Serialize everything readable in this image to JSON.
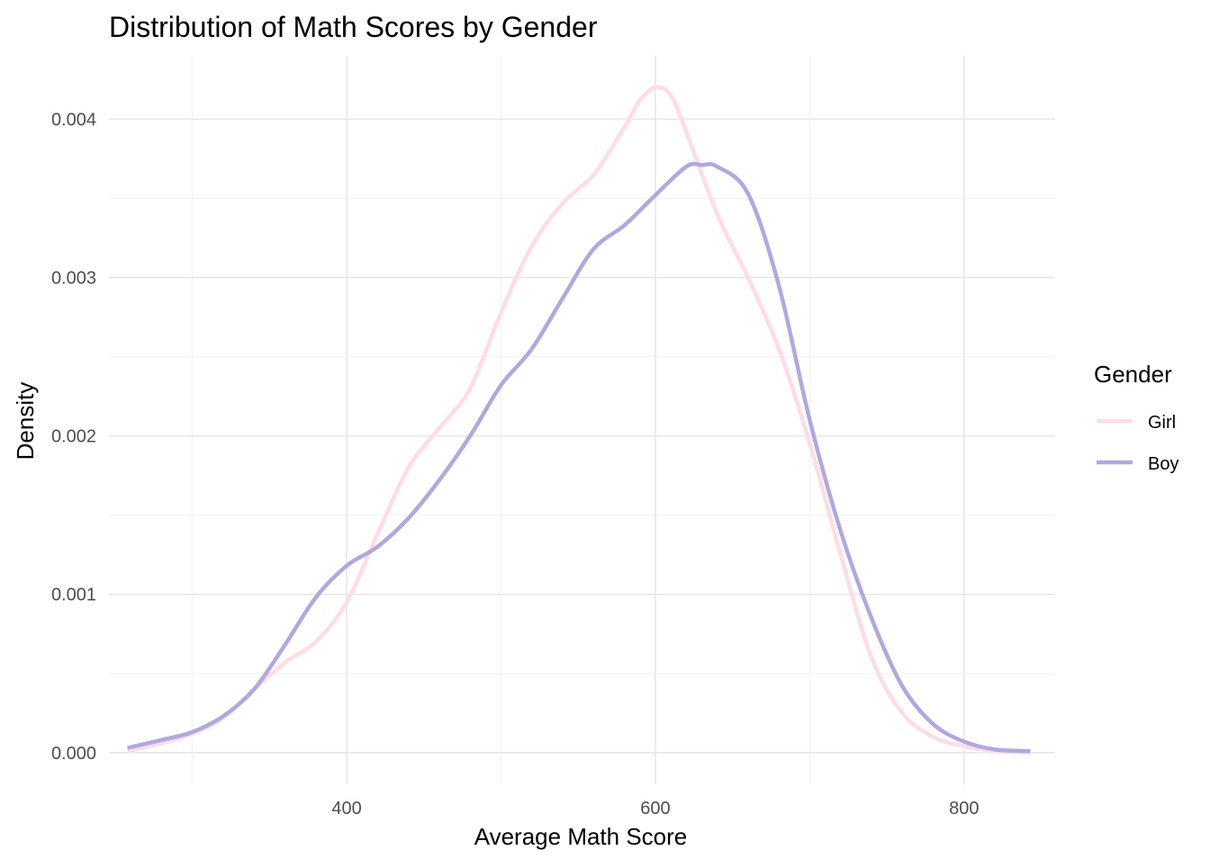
{
  "chart_data": {
    "type": "line",
    "title": "Distribution of Math Scores by Gender",
    "xlabel": "Average Math Score",
    "ylabel": "Density",
    "xlim": [
      246,
      859
    ],
    "ylim": [
      -0.0002,
      0.0044
    ],
    "x_ticks": [
      400,
      600,
      800
    ],
    "y_ticks": [
      0.0,
      0.001,
      0.002,
      0.003,
      0.004
    ],
    "x_tick_labels": [
      "400",
      "600",
      "800"
    ],
    "y_tick_labels": [
      "0.000",
      "0.001",
      "0.002",
      "0.003",
      "0.004"
    ],
    "grid": true,
    "legend": {
      "title": "Gender",
      "position": "right",
      "entries": [
        "Girl",
        "Boy"
      ]
    },
    "series": [
      {
        "name": "Girl",
        "color": "#ffdce6",
        "x": [
          258,
          280,
          300,
          320,
          340,
          360,
          380,
          400,
          420,
          440,
          460,
          480,
          500,
          520,
          540,
          560,
          580,
          590,
          600,
          610,
          620,
          640,
          660,
          680,
          700,
          720,
          740,
          760,
          780,
          800,
          820,
          843
        ],
        "y": [
          1e-05,
          6e-05,
          0.00012,
          0.00022,
          0.0004,
          0.00057,
          0.0007,
          0.00095,
          0.00138,
          0.0018,
          0.00205,
          0.0023,
          0.00278,
          0.0032,
          0.00347,
          0.00365,
          0.00395,
          0.00412,
          0.0042,
          0.00415,
          0.00392,
          0.0034,
          0.003,
          0.00255,
          0.00195,
          0.00125,
          0.0006,
          0.00025,
          0.0001,
          4e-05,
          1e-05,
          0.0
        ]
      },
      {
        "name": "Boy",
        "color": "#b0a8e0",
        "x": [
          258,
          280,
          300,
          320,
          340,
          360,
          380,
          400,
          420,
          440,
          460,
          480,
          500,
          520,
          540,
          560,
          580,
          600,
          620,
          630,
          640,
          660,
          680,
          700,
          720,
          740,
          760,
          780,
          800,
          820,
          843
        ],
        "y": [
          3e-05,
          8e-05,
          0.00013,
          0.00023,
          0.0004,
          0.00068,
          0.00098,
          0.00118,
          0.0013,
          0.00148,
          0.00172,
          0.002,
          0.00232,
          0.00255,
          0.00287,
          0.00318,
          0.00333,
          0.00352,
          0.0037,
          0.00371,
          0.0037,
          0.00353,
          0.00295,
          0.0021,
          0.0014,
          0.00085,
          0.00042,
          0.00018,
          7e-05,
          2e-05,
          1e-05
        ]
      }
    ]
  }
}
